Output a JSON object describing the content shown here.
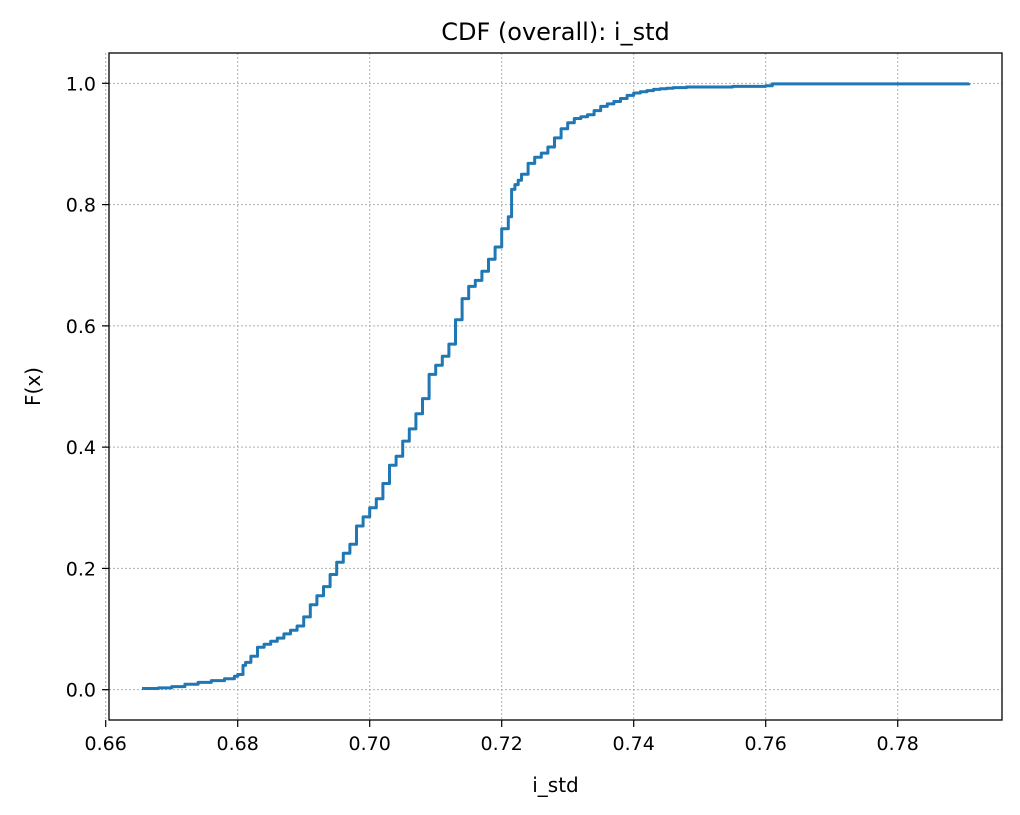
{
  "chart_data": {
    "type": "line",
    "title": "CDF (overall): i_std",
    "xlabel": "i_std",
    "ylabel": "F(x)",
    "xlim": [
      0.6605,
      0.7958
    ],
    "ylim": [
      -0.05,
      1.05
    ],
    "xticks": [
      0.66,
      0.68,
      0.7,
      0.72,
      0.74,
      0.76,
      0.78
    ],
    "xtick_labels": [
      "0.66",
      "0.68",
      "0.70",
      "0.72",
      "0.74",
      "0.76",
      "0.78"
    ],
    "yticks": [
      0.0,
      0.2,
      0.4,
      0.6,
      0.8,
      1.0
    ],
    "ytick_labels": [
      "0.0",
      "0.2",
      "0.4",
      "0.6",
      "0.8",
      "1.0"
    ],
    "grid": true,
    "series": [
      {
        "color": "#1f77b4",
        "x": [
          0.6655,
          0.668,
          0.67,
          0.672,
          0.674,
          0.676,
          0.678,
          0.6795,
          0.68,
          0.6808,
          0.6812,
          0.682,
          0.683,
          0.684,
          0.685,
          0.686,
          0.687,
          0.688,
          0.689,
          0.69,
          0.691,
          0.692,
          0.693,
          0.694,
          0.695,
          0.696,
          0.697,
          0.698,
          0.699,
          0.7,
          0.701,
          0.702,
          0.703,
          0.704,
          0.705,
          0.706,
          0.707,
          0.708,
          0.709,
          0.71,
          0.711,
          0.712,
          0.713,
          0.714,
          0.715,
          0.716,
          0.717,
          0.718,
          0.719,
          0.72,
          0.721,
          0.7215,
          0.722,
          0.7225,
          0.723,
          0.724,
          0.725,
          0.726,
          0.727,
          0.728,
          0.729,
          0.73,
          0.731,
          0.732,
          0.733,
          0.734,
          0.735,
          0.736,
          0.737,
          0.738,
          0.739,
          0.74,
          0.741,
          0.742,
          0.743,
          0.744,
          0.745,
          0.746,
          0.748,
          0.75,
          0.755,
          0.76,
          0.761,
          0.77,
          0.78,
          0.7908
        ],
        "values": [
          0.002,
          0.003,
          0.005,
          0.009,
          0.012,
          0.015,
          0.018,
          0.022,
          0.025,
          0.04,
          0.045,
          0.055,
          0.07,
          0.075,
          0.08,
          0.085,
          0.092,
          0.098,
          0.105,
          0.12,
          0.14,
          0.155,
          0.17,
          0.19,
          0.21,
          0.225,
          0.24,
          0.27,
          0.285,
          0.3,
          0.315,
          0.34,
          0.37,
          0.385,
          0.41,
          0.43,
          0.455,
          0.48,
          0.52,
          0.535,
          0.55,
          0.57,
          0.61,
          0.645,
          0.665,
          0.675,
          0.69,
          0.71,
          0.73,
          0.76,
          0.78,
          0.825,
          0.833,
          0.84,
          0.85,
          0.868,
          0.878,
          0.885,
          0.895,
          0.91,
          0.925,
          0.935,
          0.942,
          0.945,
          0.948,
          0.955,
          0.962,
          0.966,
          0.97,
          0.975,
          0.98,
          0.984,
          0.986,
          0.988,
          0.99,
          0.991,
          0.992,
          0.993,
          0.994,
          0.994,
          0.995,
          0.996,
          0.999,
          0.999,
          0.999,
          1.0
        ]
      }
    ]
  }
}
